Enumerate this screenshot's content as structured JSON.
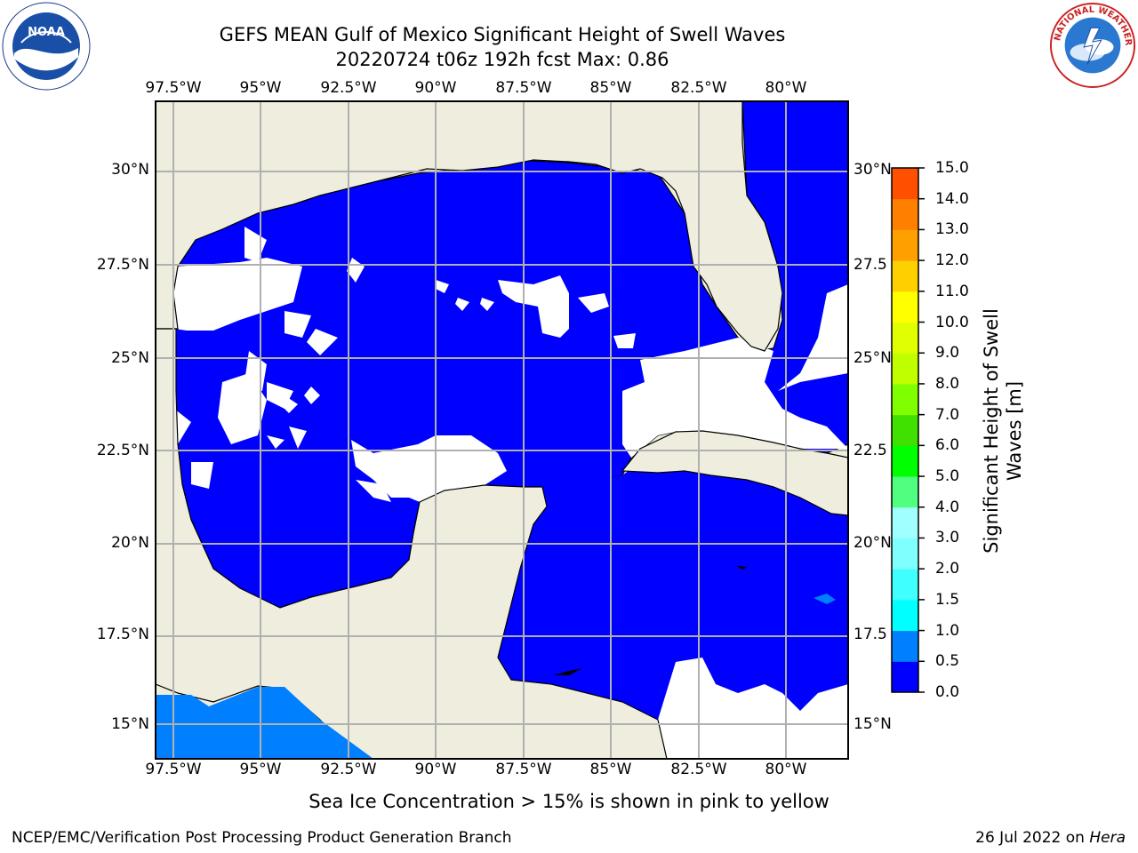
{
  "header": {
    "title_line1": "GEFS MEAN Gulf of Mexico Significant Height of Swell Waves",
    "title_line2": "20220724 t06z 192h fcst   Max: 0.86"
  },
  "logos": {
    "left": "NOAA",
    "right": "NATIONAL WEATHER SERVICE"
  },
  "map": {
    "lon_ticks": [
      "97.5°W",
      "95°W",
      "92.5°W",
      "90°W",
      "87.5°W",
      "85°W",
      "82.5°W",
      "80°W"
    ],
    "lat_ticks": [
      "30°N",
      "27.5°N",
      "25°N",
      "22.5°N",
      "20°N",
      "17.5°N",
      "15°N"
    ],
    "lat_ticks_right": [
      "30°N",
      "27.5",
      "25°N",
      "22.5",
      "20°N",
      "17.5",
      "15°N"
    ],
    "lon_range": [
      -98,
      -78.2
    ],
    "lat_range": [
      14,
      31.7
    ],
    "colors": {
      "land": "#eeedde",
      "water_0_0.5": "#0000ff",
      "water_0.5_1.0": "#0080ff",
      "no_data": "#ffffff",
      "grid": "#b0b0b0"
    }
  },
  "colorbar": {
    "label": "Significant Height of Swell Waves [m]",
    "ticks": [
      "0.0",
      "0.5",
      "1.0",
      "1.5",
      "2.0",
      "3.0",
      "4.0",
      "5.0",
      "6.0",
      "7.0",
      "8.0",
      "9.0",
      "10.0",
      "11.0",
      "12.0",
      "13.0",
      "14.0",
      "15.0"
    ],
    "colors": [
      "#0000ff",
      "#0080ff",
      "#00ffff",
      "#40ffff",
      "#80ffff",
      "#a0ffff",
      "#50ff80",
      "#00ff00",
      "#40e000",
      "#80ff00",
      "#c0ff00",
      "#e0ff00",
      "#ffff00",
      "#ffd000",
      "#ffa000",
      "#ff8000",
      "#ff5000",
      "#ff0000"
    ]
  },
  "note": "Sea Ice Concentration > 15% is shown in pink to yellow",
  "footer": {
    "left": "NCEP/EMC/Verification Post Processing Product Generation Branch",
    "right_date": "26 Jul 2022 on ",
    "right_host": "Hera"
  }
}
